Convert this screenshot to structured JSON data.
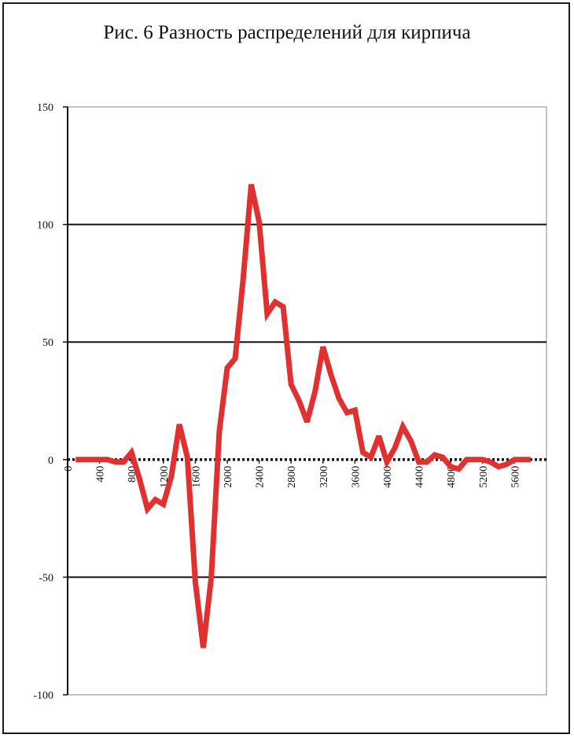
{
  "chart_data": {
    "type": "line",
    "title": "Рис. 6 Разность распределений для кирпича",
    "xlabel": "",
    "ylabel": "",
    "ylim": [
      -100,
      150
    ],
    "yticks": [
      -100,
      -50,
      0,
      50,
      100,
      150
    ],
    "ytick_labels": [
      "-100",
      "-50",
      "0",
      "50",
      "100",
      "150"
    ],
    "xlim": [
      0,
      6000
    ],
    "xticks": [
      0,
      400,
      800,
      1200,
      1600,
      2000,
      2400,
      2800,
      3200,
      3600,
      4000,
      4400,
      4800,
      5200,
      5600
    ],
    "xtick_labels": [
      "0",
      "400",
      "800",
      "1200",
      "1600",
      "2000",
      "2400",
      "2800",
      "3200",
      "3600",
      "4000",
      "4400",
      "4800",
      "5200",
      "5600"
    ],
    "grid": "horizontal",
    "series_color": "#e03030",
    "series": [
      {
        "x": [
          100,
          200,
          300,
          400,
          500,
          600,
          700,
          800,
          900,
          1000,
          1100,
          1200,
          1300,
          1400,
          1500,
          1600,
          1700,
          1800,
          1900,
          2000,
          2100,
          2200,
          2300,
          2400,
          2500,
          2600,
          2700,
          2800,
          2900,
          3000,
          3100,
          3200,
          3300,
          3400,
          3500,
          3600,
          3700,
          3800,
          3900,
          4000,
          4100,
          4200,
          4300,
          4400,
          4500,
          4600,
          4700,
          4800,
          4900,
          5000,
          5100,
          5200,
          5300,
          5400,
          5500,
          5600,
          5700,
          5800
        ],
        "y": [
          0,
          0,
          0,
          0,
          0,
          -1,
          -1,
          3,
          -8,
          -21,
          -17,
          -19,
          -7,
          15,
          1,
          -52,
          -80,
          -50,
          12,
          39,
          43,
          77,
          117,
          101,
          62,
          67,
          65,
          32,
          25,
          16,
          29,
          48,
          36,
          26,
          20,
          21,
          3,
          1,
          10,
          -1,
          5,
          14,
          8,
          -1,
          -1,
          2,
          1,
          -3,
          -4,
          0,
          0,
          0,
          -1,
          -3,
          -2,
          0,
          0,
          0
        ]
      }
    ]
  }
}
